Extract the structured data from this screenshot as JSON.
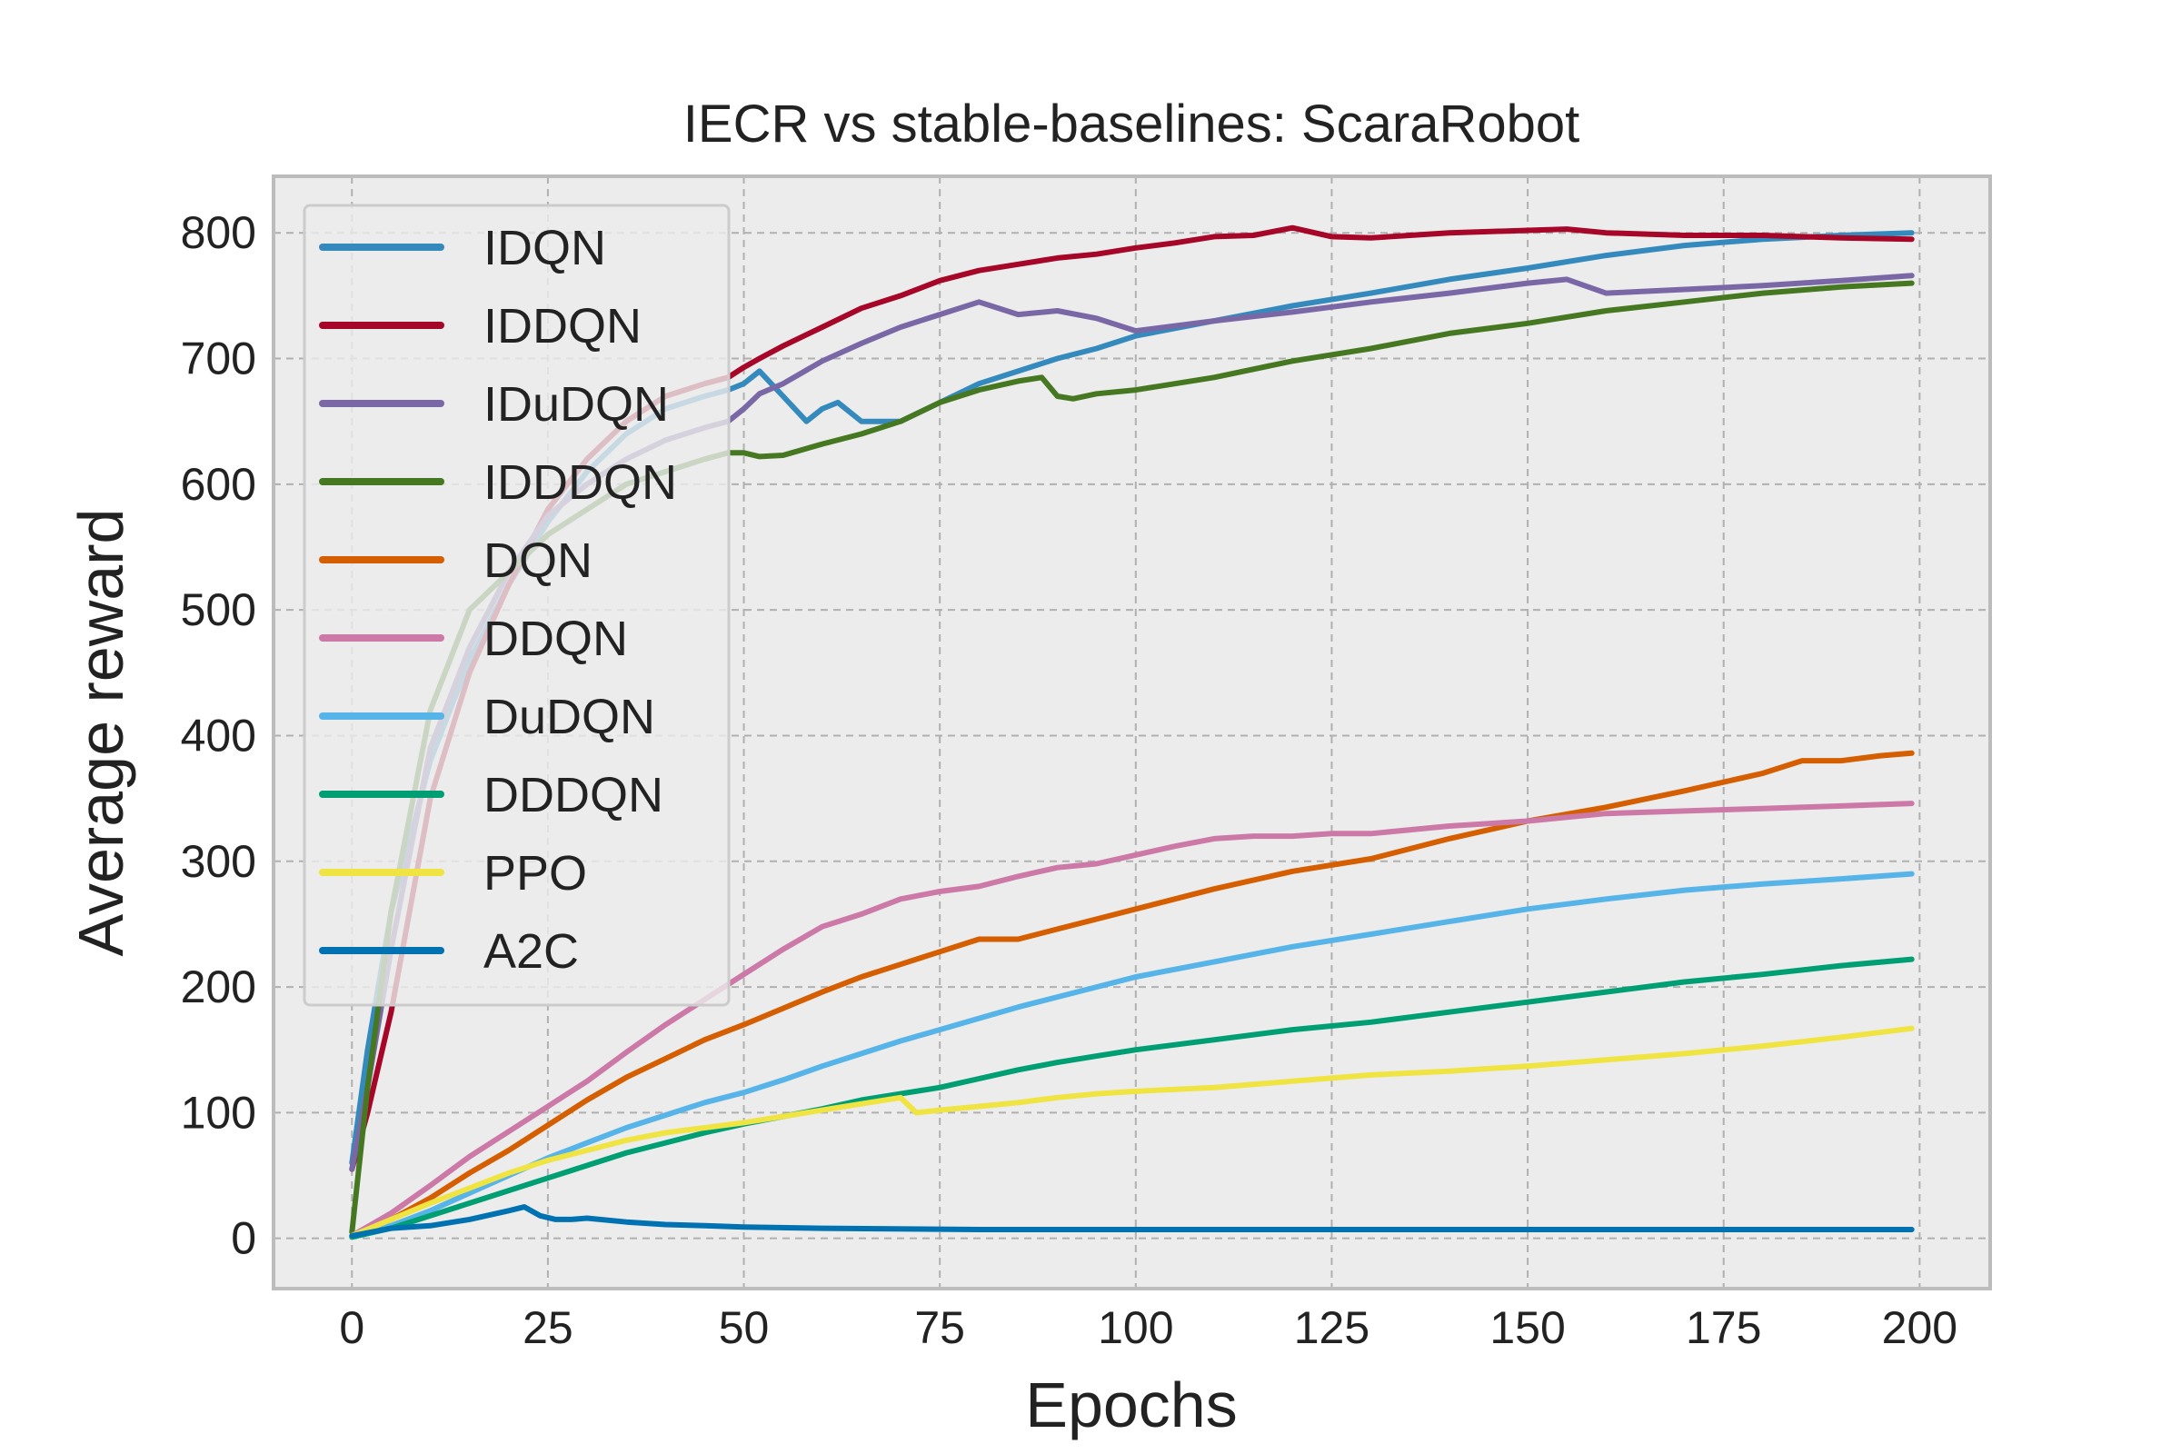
{
  "chart_data": {
    "type": "line",
    "title": "IECR vs stable-baselines: ScaraRobot",
    "xlabel": "Epochs",
    "ylabel": "Average reward",
    "xlim": [
      -10,
      209
    ],
    "ylim": [
      -40,
      845
    ],
    "xticks": [
      0,
      25,
      50,
      75,
      100,
      125,
      150,
      175,
      200
    ],
    "yticks": [
      0,
      100,
      200,
      300,
      400,
      500,
      600,
      700,
      800
    ],
    "grid": true,
    "legend_position": "top-left",
    "background": "#ececec",
    "series": [
      {
        "name": "IDQN",
        "color": "#348abd",
        "x": [
          0,
          2,
          5,
          10,
          15,
          20,
          25,
          30,
          35,
          40,
          45,
          48,
          50,
          52,
          55,
          58,
          60,
          62,
          65,
          70,
          75,
          80,
          85,
          90,
          95,
          100,
          110,
          120,
          130,
          140,
          150,
          160,
          170,
          180,
          190,
          199
        ],
        "y": [
          60,
          150,
          260,
          380,
          460,
          520,
          570,
          610,
          640,
          660,
          670,
          675,
          680,
          690,
          670,
          650,
          660,
          665,
          650,
          650,
          665,
          680,
          690,
          700,
          708,
          718,
          730,
          742,
          752,
          763,
          772,
          782,
          790,
          795,
          798,
          800
        ]
      },
      {
        "name": "IDDQN",
        "color": "#a60628",
        "x": [
          0,
          2,
          5,
          10,
          15,
          20,
          25,
          30,
          35,
          40,
          45,
          48,
          50,
          52,
          55,
          60,
          65,
          70,
          75,
          80,
          85,
          90,
          95,
          100,
          105,
          110,
          115,
          120,
          125,
          130,
          140,
          150,
          155,
          160,
          170,
          180,
          190,
          199
        ],
        "y": [
          55,
          100,
          180,
          350,
          450,
          520,
          580,
          620,
          650,
          670,
          680,
          685,
          693,
          700,
          710,
          725,
          740,
          750,
          762,
          770,
          775,
          780,
          783,
          788,
          792,
          797,
          798,
          804,
          797,
          796,
          800,
          802,
          803,
          800,
          798,
          798,
          796,
          795
        ]
      },
      {
        "name": "IDuDQN",
        "color": "#7a68a6",
        "x": [
          0,
          2,
          5,
          10,
          15,
          20,
          25,
          30,
          35,
          40,
          45,
          48,
          50,
          52,
          55,
          60,
          65,
          70,
          75,
          80,
          85,
          90,
          95,
          100,
          110,
          120,
          130,
          140,
          150,
          155,
          160,
          170,
          180,
          190,
          199
        ],
        "y": [
          55,
          120,
          230,
          390,
          470,
          530,
          575,
          600,
          620,
          635,
          645,
          650,
          660,
          672,
          680,
          698,
          712,
          725,
          735,
          745,
          735,
          738,
          732,
          722,
          730,
          737,
          745,
          752,
          760,
          763,
          752,
          755,
          758,
          762,
          766
        ]
      },
      {
        "name": "IDDDQN",
        "color": "#467821",
        "x": [
          0,
          2,
          5,
          10,
          15,
          20,
          25,
          30,
          35,
          40,
          45,
          48,
          50,
          52,
          55,
          60,
          65,
          70,
          75,
          80,
          85,
          88,
          90,
          92,
          95,
          100,
          110,
          120,
          130,
          140,
          150,
          160,
          170,
          180,
          190,
          199
        ],
        "y": [
          5,
          120,
          260,
          420,
          500,
          530,
          560,
          580,
          600,
          610,
          620,
          625,
          625,
          622,
          623,
          632,
          640,
          650,
          665,
          675,
          682,
          685,
          670,
          668,
          672,
          675,
          685,
          698,
          708,
          720,
          728,
          738,
          745,
          752,
          757,
          760
        ]
      },
      {
        "name": "DQN",
        "color": "#d55e00",
        "x": [
          0,
          5,
          10,
          15,
          20,
          25,
          30,
          35,
          40,
          45,
          50,
          55,
          60,
          65,
          70,
          75,
          80,
          85,
          90,
          95,
          100,
          110,
          120,
          130,
          140,
          150,
          160,
          170,
          180,
          185,
          190,
          195,
          199
        ],
        "y": [
          2,
          15,
          32,
          52,
          70,
          90,
          110,
          128,
          143,
          158,
          170,
          183,
          196,
          208,
          218,
          228,
          238,
          238,
          246,
          254,
          262,
          278,
          292,
          302,
          318,
          332,
          343,
          356,
          370,
          380,
          380,
          384,
          386
        ]
      },
      {
        "name": "DDQN",
        "color": "#cc79a7",
        "x": [
          0,
          5,
          10,
          15,
          20,
          25,
          30,
          35,
          40,
          45,
          50,
          55,
          60,
          65,
          70,
          75,
          80,
          85,
          90,
          95,
          100,
          105,
          110,
          115,
          120,
          125,
          130,
          140,
          150,
          160,
          170,
          180,
          190,
          199
        ],
        "y": [
          2,
          20,
          42,
          65,
          85,
          105,
          125,
          148,
          170,
          190,
          210,
          230,
          248,
          258,
          270,
          276,
          280,
          288,
          295,
          298,
          305,
          312,
          318,
          320,
          320,
          322,
          322,
          328,
          332,
          338,
          340,
          342,
          344,
          346
        ]
      },
      {
        "name": "DuDQN",
        "color": "#56b4e9",
        "x": [
          0,
          5,
          10,
          15,
          20,
          25,
          30,
          35,
          40,
          45,
          50,
          55,
          60,
          65,
          70,
          75,
          80,
          85,
          90,
          95,
          100,
          110,
          120,
          130,
          140,
          150,
          160,
          170,
          180,
          190,
          199
        ],
        "y": [
          1,
          10,
          22,
          36,
          50,
          64,
          76,
          88,
          98,
          108,
          116,
          126,
          137,
          147,
          157,
          166,
          175,
          184,
          192,
          200,
          208,
          220,
          232,
          242,
          252,
          262,
          270,
          277,
          282,
          286,
          290
        ]
      },
      {
        "name": "DDDQN",
        "color": "#009e73",
        "x": [
          0,
          5,
          10,
          15,
          20,
          25,
          30,
          35,
          40,
          45,
          50,
          55,
          60,
          65,
          70,
          75,
          80,
          85,
          90,
          95,
          100,
          110,
          120,
          130,
          140,
          150,
          160,
          170,
          180,
          190,
          199
        ],
        "y": [
          1,
          8,
          18,
          28,
          38,
          48,
          58,
          68,
          76,
          84,
          91,
          97,
          103,
          110,
          115,
          120,
          127,
          134,
          140,
          145,
          150,
          158,
          166,
          172,
          180,
          188,
          196,
          204,
          210,
          217,
          222
        ]
      },
      {
        "name": "PPO",
        "color": "#f0e442",
        "x": [
          0,
          5,
          10,
          15,
          20,
          25,
          30,
          35,
          40,
          45,
          50,
          55,
          60,
          65,
          70,
          72,
          75,
          80,
          85,
          90,
          95,
          100,
          110,
          120,
          130,
          140,
          150,
          160,
          170,
          180,
          190,
          199
        ],
        "y": [
          2,
          15,
          28,
          40,
          52,
          62,
          70,
          78,
          84,
          88,
          92,
          97,
          102,
          107,
          112,
          100,
          102,
          105,
          108,
          112,
          115,
          117,
          120,
          125,
          130,
          133,
          137,
          142,
          147,
          153,
          160,
          167
        ]
      },
      {
        "name": "A2C",
        "color": "#0072b2",
        "x": [
          0,
          5,
          10,
          15,
          20,
          22,
          24,
          26,
          28,
          30,
          35,
          40,
          45,
          50,
          60,
          80,
          100,
          150,
          199
        ],
        "y": [
          2,
          8,
          10,
          15,
          22,
          25,
          18,
          15,
          15,
          16,
          13,
          11,
          10,
          9,
          8,
          7,
          7,
          7,
          7
        ]
      }
    ]
  }
}
